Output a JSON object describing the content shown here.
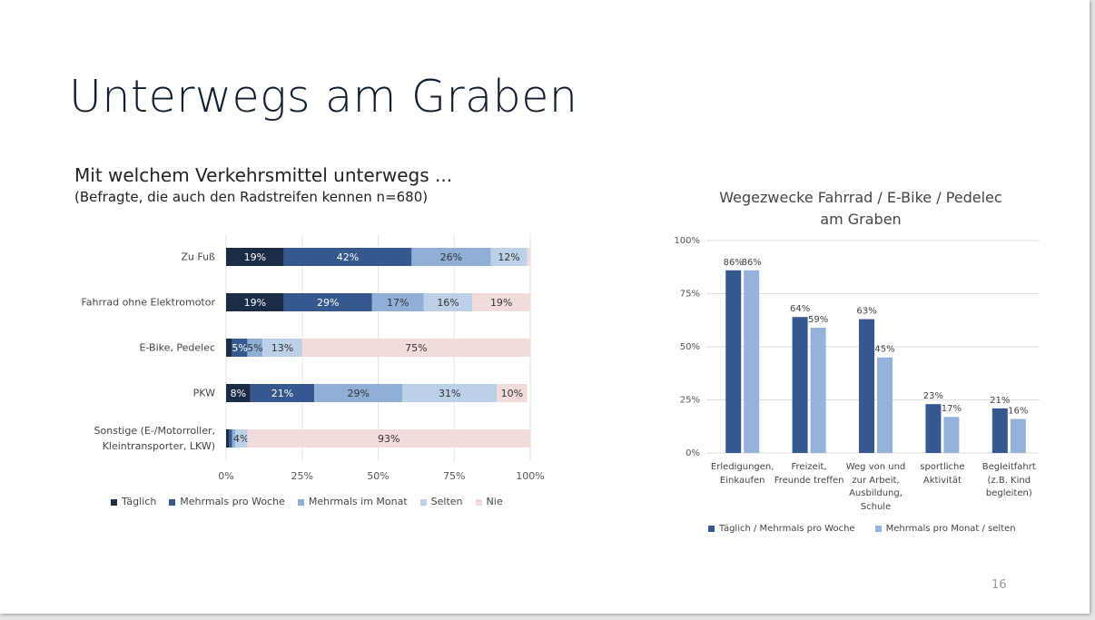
{
  "title": "Unterwegs am Graben",
  "page_number": 16,
  "chart_data": [
    {
      "type": "bar",
      "stacked": true,
      "horizontal": true,
      "grid": true,
      "title": "Mit welchem Verkehrsmittel unterwegs ...",
      "subtitle": "(Befragte, die auch den Radstreifen kennen n=680)",
      "categories": [
        "Zu Fuß",
        "Fahrrad ohne Elektromotor",
        "E-Bike, Pedelec",
        "PKW",
        "Sonstige (E-/Motorroller, Kleintransporter, LKW)"
      ],
      "series": [
        {
          "name": "Täglich",
          "color": "#1b2c47",
          "values": [
            19,
            19,
            2,
            8,
            1
          ],
          "value_labels": [
            "19%",
            "19%",
            null,
            "8%",
            null
          ]
        },
        {
          "name": "Mehrmals pro Woche",
          "color": "#35598e",
          "values": [
            42,
            29,
            5,
            21,
            1
          ],
          "value_labels": [
            "42%",
            "29%",
            "5%",
            "21%",
            null
          ]
        },
        {
          "name": "Mehrmals im Monat",
          "color": "#90afd7",
          "values": [
            26,
            17,
            5,
            29,
            1
          ],
          "value_labels": [
            "26%",
            "17%",
            "5%",
            "29%",
            null
          ]
        },
        {
          "name": "Selten",
          "color": "#bcd0e8",
          "values": [
            12,
            16,
            13,
            31,
            4
          ],
          "value_labels": [
            "12%",
            "16%",
            "13%",
            "31%",
            "4%"
          ]
        },
        {
          "name": "Nie",
          "color": "#f1dbdb",
          "values": [
            1,
            19,
            75,
            10,
            93
          ],
          "value_labels": [
            null,
            "19%",
            "75%",
            "10%",
            "93%"
          ]
        }
      ],
      "xlim": [
        0,
        100
      ],
      "xticks": [
        {
          "value": 0,
          "label": "0%"
        },
        {
          "value": 25,
          "label": "25%"
        },
        {
          "value": 50,
          "label": "50%"
        },
        {
          "value": 75,
          "label": "75%"
        },
        {
          "value": 100,
          "label": "100%"
        }
      ]
    },
    {
      "type": "bar",
      "stacked": false,
      "horizontal": false,
      "grid": true,
      "title": "Wegezwecke Fahrrad / E-Bike / Pedelec am Graben",
      "categories": [
        "Erledigungen, Einkaufen",
        "Freizeit, Freunde treffen",
        "Weg von und zur Arbeit, Ausbildung, Schule",
        "sportliche Aktivität",
        "Begleitfahrt (z.B. Kind begleiten)"
      ],
      "series": [
        {
          "name": "Täglich / Mehrmals pro Woche",
          "color": "#35598e",
          "values": [
            86,
            64,
            63,
            23,
            21
          ],
          "value_labels": [
            "86%",
            "64%",
            "63%",
            "23%",
            "21%"
          ]
        },
        {
          "name": "Mehrmals pro Monat / selten",
          "color": "#95b3da",
          "values": [
            86,
            59,
            45,
            17,
            16
          ],
          "value_labels": [
            "86%",
            "59%",
            "45%",
            "17%",
            "16%"
          ]
        }
      ],
      "ylim": [
        0,
        100
      ],
      "yticks": [
        {
          "value": 0,
          "label": "0%"
        },
        {
          "value": 25,
          "label": "25%"
        },
        {
          "value": 50,
          "label": "50%"
        },
        {
          "value": 75,
          "label": "75%"
        },
        {
          "value": 100,
          "label": "100%"
        }
      ]
    }
  ]
}
